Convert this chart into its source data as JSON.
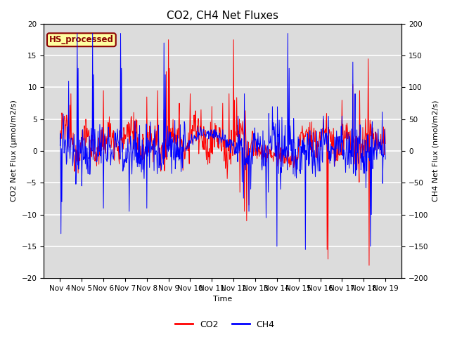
{
  "title": "CO2, CH4 Net Fluxes",
  "xlabel": "Time",
  "ylabel_left": "CO2 Net Flux (μmol/m2/s)",
  "ylabel_right": "CH4 Net Flux (nmol/m2/s)",
  "ylim_left": [
    -20,
    20
  ],
  "ylim_right": [
    -200,
    200
  ],
  "yticks_left": [
    -20,
    -15,
    -10,
    -5,
    0,
    5,
    10,
    15,
    20
  ],
  "yticks_right": [
    -200,
    -150,
    -100,
    -50,
    0,
    50,
    100,
    150,
    200
  ],
  "xtick_labels": [
    "Nov 4",
    "Nov 5",
    "Nov 6",
    "Nov 7",
    "Nov 8",
    "Nov 9Nov",
    "10Nov",
    "11Nov",
    "12Nov",
    "13Nov",
    "14Nov",
    "15Nov",
    "16Nov",
    "17Nov",
    "18Nov 19"
  ],
  "co2_color": "#FF0000",
  "ch4_color": "#0000FF",
  "bg_color": "#DCDCDC",
  "annotation_text": "HS_processed",
  "annotation_bg": "#FFFFA0",
  "annotation_border": "#8B0000",
  "annotation_text_color": "#8B0000",
  "legend_co2": "CO2",
  "legend_ch4": "CH4",
  "title_fontsize": 11,
  "axis_fontsize": 8,
  "tick_fontsize": 7.5,
  "legend_fontsize": 9
}
